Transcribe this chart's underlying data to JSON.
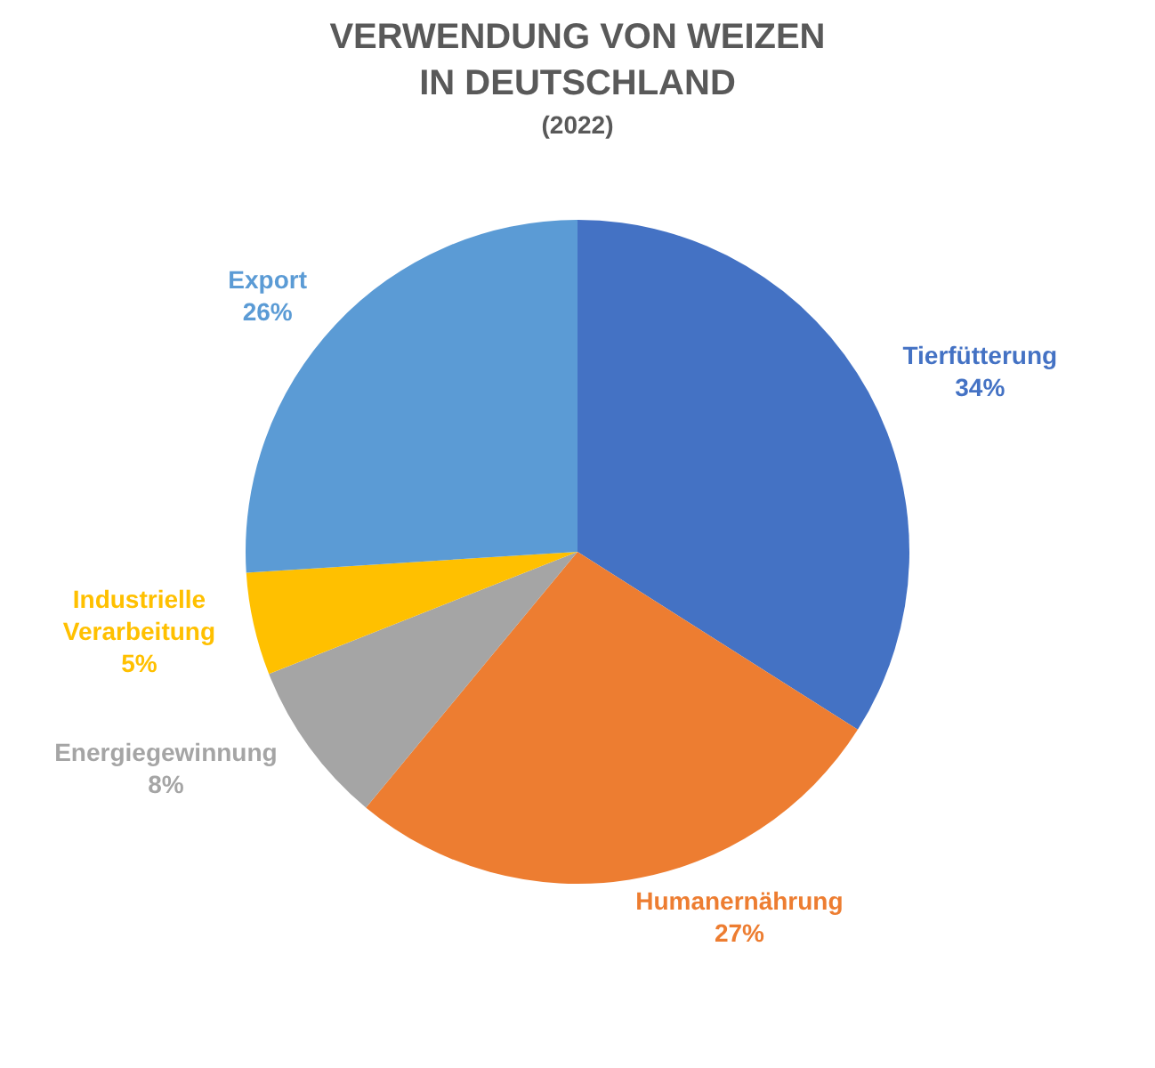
{
  "chart_data": {
    "type": "pie",
    "title": "VERWENDUNG VON WEIZEN IN DEUTSCHLAND",
    "subtitle": "(2022)",
    "categories": [
      "Tierfütterung",
      "Humanernährung",
      "Energiegewinnung",
      "Industrielle Verarbeitung",
      "Export"
    ],
    "values": [
      34,
      27,
      8,
      5,
      26
    ],
    "colors": [
      "#4472c4",
      "#ed7d31",
      "#a5a5a5",
      "#ffc000",
      "#5b9bd5"
    ],
    "value_labels": [
      "34%",
      "27%",
      "8%",
      "5%",
      "26%"
    ],
    "legend": false
  }
}
